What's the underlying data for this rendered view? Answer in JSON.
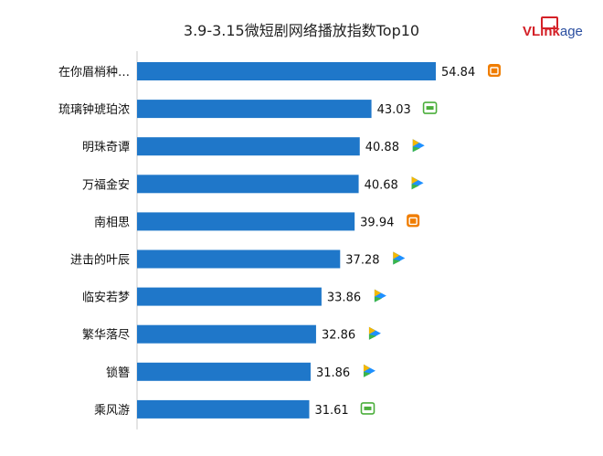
{
  "logo": {
    "part_v": "V",
    "part_link": "Link",
    "part_age": "age"
  },
  "colors": {
    "bar": "#1f77c9",
    "axis": "#c8c8c8",
    "iqiyi": "#4caf3c",
    "youku_blue": "#1e90ff",
    "youku_green": "#3ab54a",
    "youku_yellow": "#f5b800",
    "mango": "#f07d00"
  },
  "chart_data": {
    "type": "bar",
    "orientation": "horizontal",
    "title": "3.9-3.15微短剧网络播放指数Top10",
    "categories": [
      "在你眉梢种…",
      "琉璃钟琥珀浓",
      "明珠奇谭",
      "万福金安",
      "南相思",
      "进击的叶辰",
      "临安若梦",
      "繁华落尽",
      "锁簪",
      "乘风游"
    ],
    "values": [
      54.84,
      43.03,
      40.88,
      40.68,
      39.94,
      37.28,
      33.86,
      32.86,
      31.86,
      31.61
    ],
    "value_labels": [
      "54.84",
      "43.03",
      "40.88",
      "40.68",
      "39.94",
      "37.28",
      "33.86",
      "32.86",
      "31.86",
      "31.61"
    ],
    "platform_icons": [
      "mango-icon",
      "iqiyi-icon",
      "youku-icon",
      "youku-icon",
      "mango-icon",
      "youku-icon",
      "youku-icon",
      "youku-icon",
      "youku-icon",
      "iqiyi-icon"
    ],
    "xlim": [
      0,
      54.84
    ],
    "legend": "none",
    "grid": false
  }
}
